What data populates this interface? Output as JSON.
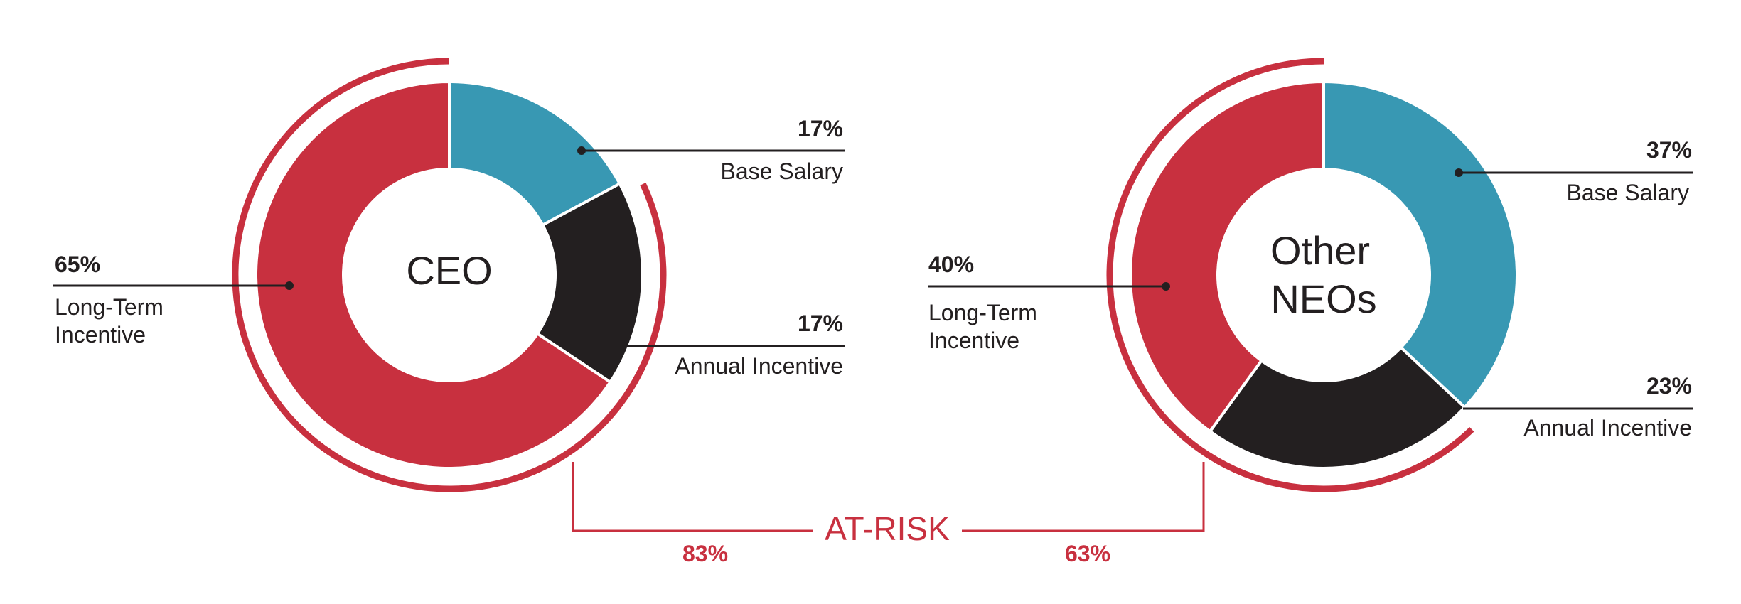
{
  "colors": {
    "base_salary": "#3898b3",
    "annual_incentive": "#231f20",
    "long_term_incentive": "#c8303f",
    "at_risk": "#c8303f",
    "text": "#231f20"
  },
  "chart_data": [
    {
      "type": "pie",
      "variant": "donut",
      "title": "CEO",
      "title_lines": [
        "CEO"
      ],
      "slices": [
        {
          "key": "base",
          "label": "Base Salary",
          "value": 17,
          "value_label": "17%",
          "color": "#3898b3"
        },
        {
          "key": "annual",
          "label": "Annual Incentive",
          "value": 17,
          "value_label": "17%",
          "color": "#231f20"
        },
        {
          "key": "lti",
          "label": "Long-Term Incentive",
          "label_lines": [
            "Long-Term",
            "Incentive"
          ],
          "value": 65,
          "value_label": "65%",
          "color": "#c8303f"
        }
      ],
      "at_risk": {
        "value": 83,
        "value_label": "83%"
      }
    },
    {
      "type": "pie",
      "variant": "donut",
      "title": "Other NEOs",
      "title_lines": [
        "Other",
        "NEOs"
      ],
      "slices": [
        {
          "key": "base",
          "label": "Base Salary",
          "value": 37,
          "value_label": "37%",
          "color": "#3898b3"
        },
        {
          "key": "annual",
          "label": "Annual Incentive",
          "value": 23,
          "value_label": "23%",
          "color": "#231f20"
        },
        {
          "key": "lti",
          "label": "Long-Term Incentive",
          "label_lines": [
            "Long-Term",
            "Incentive"
          ],
          "value": 40,
          "value_label": "40%",
          "color": "#c8303f"
        }
      ],
      "at_risk": {
        "value": 63,
        "value_label": "63%"
      }
    }
  ],
  "at_risk_label": "AT-RISK"
}
